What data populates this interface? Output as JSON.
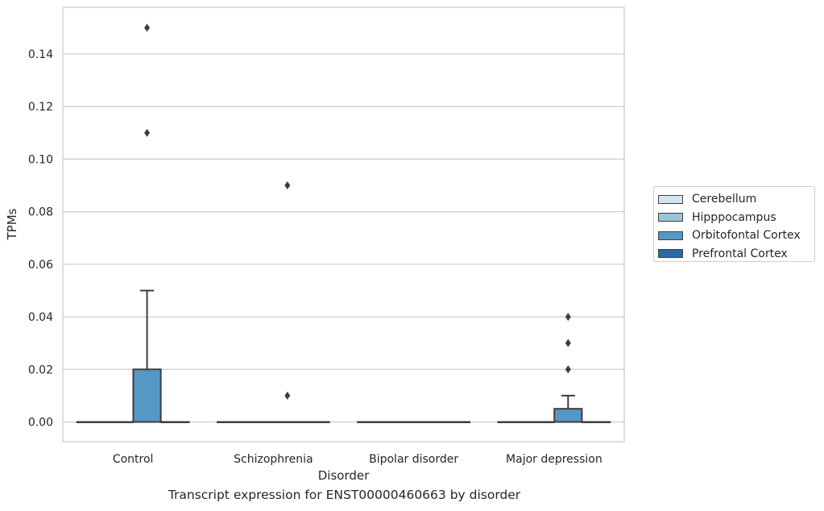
{
  "chart_data": {
    "type": "box",
    "xlabel": "Disorder",
    "ylabel": "TPMs",
    "caption": "Transcript expression for ENST00000460663 by disorder",
    "ylim": [
      -0.0075,
      0.1575
    ],
    "yticks": [
      "0.00",
      "0.02",
      "0.04",
      "0.06",
      "0.08",
      "0.10",
      "0.12",
      "0.14"
    ],
    "grid": "horizontal",
    "legend_placement": "right",
    "categories": [
      "Control",
      "Schizophrenia",
      "Bipolar disorder",
      "Major depression"
    ],
    "series": [
      {
        "name": "Cerebellum",
        "color": "#d4e3f0"
      },
      {
        "name": "Hipppocampus",
        "color": "#9cc4dd"
      },
      {
        "name": "Orbitofontal Cortex",
        "color": "#5698c5"
      },
      {
        "name": "Prefrontal Cortex",
        "color": "#2b6aa5"
      }
    ],
    "boxes": [
      {
        "category": "Control",
        "series": "Cerebellum",
        "q1": 0,
        "median": 0,
        "q3": 0,
        "whisker_low": 0,
        "whisker_high": 0,
        "outliers": []
      },
      {
        "category": "Control",
        "series": "Hipppocampus",
        "q1": 0,
        "median": 0,
        "q3": 0,
        "whisker_low": 0,
        "whisker_high": 0,
        "outliers": []
      },
      {
        "category": "Control",
        "series": "Orbitofontal Cortex",
        "q1": 0,
        "median": 0,
        "q3": 0.02,
        "whisker_low": 0,
        "whisker_high": 0.05,
        "outliers": [
          0.11,
          0.15
        ]
      },
      {
        "category": "Control",
        "series": "Prefrontal Cortex",
        "q1": 0,
        "median": 0,
        "q3": 0,
        "whisker_low": 0,
        "whisker_high": 0,
        "outliers": []
      },
      {
        "category": "Schizophrenia",
        "series": "Cerebellum",
        "q1": 0,
        "median": 0,
        "q3": 0,
        "whisker_low": 0,
        "whisker_high": 0,
        "outliers": []
      },
      {
        "category": "Schizophrenia",
        "series": "Hipppocampus",
        "q1": 0,
        "median": 0,
        "q3": 0,
        "whisker_low": 0,
        "whisker_high": 0,
        "outliers": []
      },
      {
        "category": "Schizophrenia",
        "series": "Orbitofontal Cortex",
        "q1": 0,
        "median": 0,
        "q3": 0,
        "whisker_low": 0,
        "whisker_high": 0,
        "outliers": [
          0.01,
          0.09
        ]
      },
      {
        "category": "Schizophrenia",
        "series": "Prefrontal Cortex",
        "q1": 0,
        "median": 0,
        "q3": 0,
        "whisker_low": 0,
        "whisker_high": 0,
        "outliers": []
      },
      {
        "category": "Bipolar disorder",
        "series": "Cerebellum",
        "q1": 0,
        "median": 0,
        "q3": 0,
        "whisker_low": 0,
        "whisker_high": 0,
        "outliers": []
      },
      {
        "category": "Bipolar disorder",
        "series": "Hipppocampus",
        "q1": 0,
        "median": 0,
        "q3": 0,
        "whisker_low": 0,
        "whisker_high": 0,
        "outliers": []
      },
      {
        "category": "Bipolar disorder",
        "series": "Orbitofontal Cortex",
        "q1": 0,
        "median": 0,
        "q3": 0,
        "whisker_low": 0,
        "whisker_high": 0,
        "outliers": []
      },
      {
        "category": "Bipolar disorder",
        "series": "Prefrontal Cortex",
        "q1": 0,
        "median": 0,
        "q3": 0,
        "whisker_low": 0,
        "whisker_high": 0,
        "outliers": []
      },
      {
        "category": "Major depression",
        "series": "Cerebellum",
        "q1": 0,
        "median": 0,
        "q3": 0,
        "whisker_low": 0,
        "whisker_high": 0,
        "outliers": []
      },
      {
        "category": "Major depression",
        "series": "Hipppocampus",
        "q1": 0,
        "median": 0,
        "q3": 0,
        "whisker_low": 0,
        "whisker_high": 0,
        "outliers": []
      },
      {
        "category": "Major depression",
        "series": "Orbitofontal Cortex",
        "q1": 0,
        "median": 0,
        "q3": 0.005,
        "whisker_low": 0,
        "whisker_high": 0.01,
        "outliers": [
          0.02,
          0.03,
          0.04
        ]
      },
      {
        "category": "Major depression",
        "series": "Prefrontal Cortex",
        "q1": 0,
        "median": 0,
        "q3": 0,
        "whisker_low": 0,
        "whisker_high": 0,
        "outliers": []
      }
    ]
  }
}
